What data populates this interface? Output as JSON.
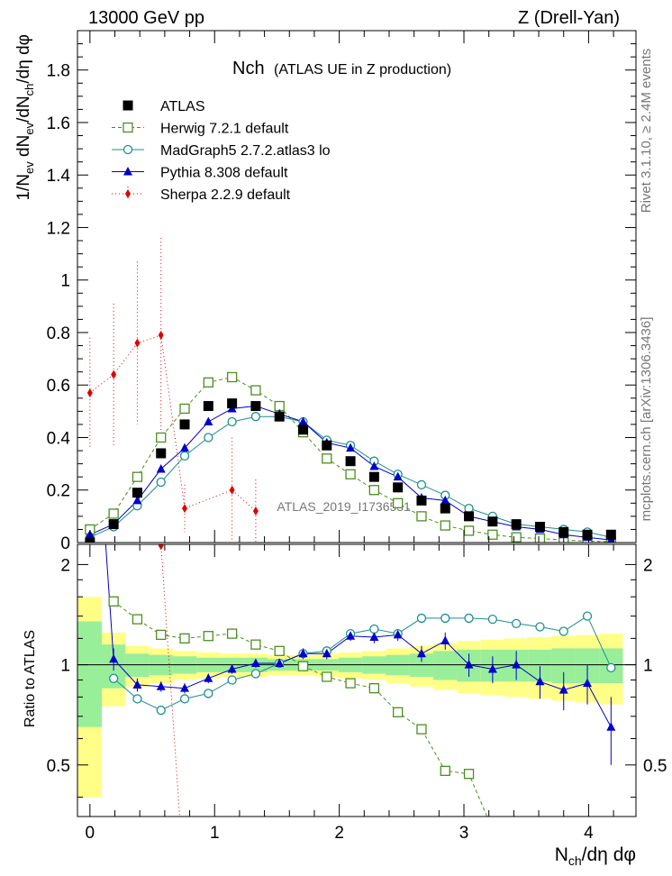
{
  "header": {
    "left": "13000 GeV pp",
    "right": "Z (Drell-Yan)"
  },
  "side": {
    "rivet": "Rivet 3.1.10, ≥ 2.4M events",
    "mcplots": "mcplots.cern.ch [arXiv:1306.3436]"
  },
  "watermark": "ATLAS_2019_I1736531",
  "chart_data": {
    "type": "line",
    "title_main": "Nch",
    "title_sub": "(ATLAS UE in Z production)",
    "ylabel_top_parts": [
      "1/N",
      "ev",
      " dN",
      "ev",
      "/dN",
      "ch",
      "/dη dφ"
    ],
    "ylabel_bottom": "Ratio to ATLAS",
    "xlabel_parts": [
      "N",
      "ch",
      "/dη dφ"
    ],
    "xlim": [
      -0.1,
      4.38
    ],
    "ylim_top": [
      0,
      1.95
    ],
    "ylim_bottom": [
      0.35,
      2.3
    ],
    "yticks_top": [
      "0",
      "0.2",
      "0.4",
      "0.6",
      "0.8",
      "1",
      "1.2",
      "1.4",
      "1.6",
      "1.8"
    ],
    "yticks_bottom": [
      "0.5",
      "1",
      "2"
    ],
    "xticks": [
      "0",
      "1",
      "2",
      "3",
      "4"
    ],
    "legend": [
      {
        "label": "ATLAS",
        "color": "#000000",
        "marker": "square-filled"
      },
      {
        "label": "Herwig 7.2.1 default",
        "color": "#4b8f1e",
        "marker": "square-open"
      },
      {
        "label": "MadGraph5 2.7.2.atlas3 lo",
        "color": "#1e8f8f",
        "marker": "circle-open"
      },
      {
        "label": "Pythia 8.308 default",
        "color": "#0000cc",
        "marker": "triangle-filled"
      },
      {
        "label": "Sherpa 2.2.9 default",
        "color": "#e00000",
        "marker": "diamond-filled"
      }
    ],
    "x": [
      0,
      0.19,
      0.38,
      0.57,
      0.76,
      0.95,
      1.14,
      1.33,
      1.52,
      1.71,
      1.9,
      2.09,
      2.28,
      2.47,
      2.66,
      2.85,
      3.04,
      3.23,
      3.42,
      3.61,
      3.8,
      3.99,
      4.18
    ],
    "atlas": [
      0.0,
      0.07,
      0.19,
      0.34,
      0.45,
      0.52,
      0.53,
      0.52,
      0.48,
      0.43,
      0.37,
      0.31,
      0.25,
      0.21,
      0.16,
      0.13,
      0.1,
      0.08,
      0.07,
      0.06,
      0.04,
      0.03,
      0.03
    ],
    "herwig": [
      0.05,
      0.11,
      0.25,
      0.4,
      0.51,
      0.61,
      0.63,
      0.58,
      0.52,
      0.42,
      0.32,
      0.26,
      0.2,
      0.15,
      0.1,
      0.065,
      0.045,
      0.03,
      0.02,
      0.015,
      0.01,
      0.005,
      0.003
    ],
    "madgraph": [
      0.02,
      0.06,
      0.14,
      0.23,
      0.33,
      0.4,
      0.46,
      0.48,
      0.48,
      0.46,
      0.39,
      0.37,
      0.31,
      0.26,
      0.22,
      0.18,
      0.13,
      0.1,
      0.07,
      0.06,
      0.05,
      0.04,
      0.02
    ],
    "pythia": [
      0.03,
      0.07,
      0.16,
      0.28,
      0.36,
      0.46,
      0.51,
      0.52,
      0.49,
      0.46,
      0.38,
      0.36,
      0.29,
      0.25,
      0.17,
      0.16,
      0.1,
      0.08,
      0.06,
      0.05,
      0.03,
      0.02,
      0.01
    ],
    "sherpa": {
      "x": [
        0,
        0.19,
        0.38,
        0.57,
        0.76,
        1.14,
        1.33
      ],
      "y": [
        0.57,
        0.64,
        0.76,
        0.79,
        0.13,
        0.2,
        0.12
      ],
      "err": [
        0.21,
        0.27,
        0.31,
        0.37,
        0.09,
        0.2,
        0.12
      ]
    },
    "ratio": {
      "herwig": [
        null,
        1.55,
        1.37,
        1.23,
        1.2,
        1.22,
        1.24,
        1.15,
        1.1,
        0.99,
        0.92,
        0.88,
        0.85,
        0.72,
        0.64,
        0.48,
        0.47
      ],
      "madgraph": [
        null,
        0.91,
        0.79,
        0.73,
        0.79,
        0.82,
        0.9,
        0.94,
        1.01,
        1.08,
        1.1,
        1.24,
        1.28,
        1.24,
        1.38,
        1.38,
        1.38,
        1.37,
        1.33,
        1.3,
        1.26,
        1.4,
        0.98
      ],
      "pythia": [
        null,
        1.04,
        0.87,
        0.86,
        0.85,
        0.91,
        0.97,
        1.01,
        1.01,
        1.08,
        1.08,
        1.22,
        1.21,
        1.23,
        1.08,
        1.18,
        1.0,
        0.97,
        1.0,
        0.89,
        0.84,
        0.88,
        0.65
      ],
      "pythia_err": [
        0,
        0.08,
        0.04,
        0.03,
        0.03,
        0.03,
        0.03,
        0.03,
        0.03,
        0.04,
        0.04,
        0.04,
        0.05,
        0.05,
        0.06,
        0.07,
        0.08,
        0.09,
        0.1,
        0.1,
        0.11,
        0.12,
        0.15
      ],
      "sherpa": [
        {
          "x": 0.57,
          "y": 2.3
        },
        {
          "x": 0.72,
          "y": 0.35
        }
      ],
      "band_inner": [
        0.35,
        0.15,
        0.08,
        0.07,
        0.06,
        0.05,
        0.05,
        0.05,
        0.04,
        0.04,
        0.04,
        0.05,
        0.06,
        0.07,
        0.08,
        0.1,
        0.11,
        0.11,
        0.11,
        0.11,
        0.12,
        0.12,
        0.12
      ],
      "band_outer": [
        0.6,
        0.25,
        0.14,
        0.12,
        0.1,
        0.09,
        0.08,
        0.08,
        0.07,
        0.07,
        0.08,
        0.09,
        0.1,
        0.12,
        0.14,
        0.16,
        0.18,
        0.19,
        0.2,
        0.21,
        0.22,
        0.23,
        0.24
      ]
    }
  }
}
